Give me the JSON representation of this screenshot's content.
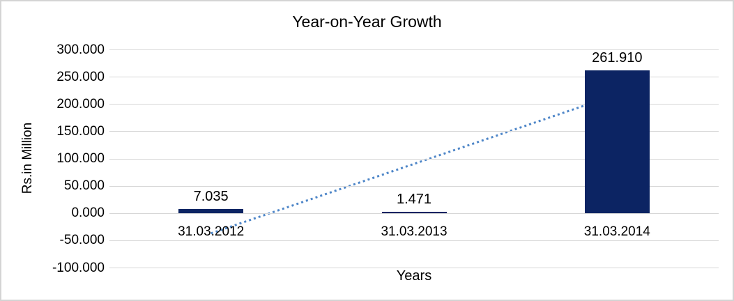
{
  "window": {
    "background": "#ffffff",
    "border_color": "#d4d4d4"
  },
  "chart_data": {
    "type": "bar",
    "title": "Year-on-Year Growth",
    "xlabel": "Years",
    "ylabel": "Rs.in Million",
    "categories": [
      "31.03.2012",
      "31.03.2013",
      "31.03.2014"
    ],
    "values": [
      7.035,
      1.471,
      261.91
    ],
    "data_labels": [
      "7.035",
      "1.471",
      "261.910"
    ],
    "y_ticks": [
      300,
      250,
      200,
      150,
      100,
      50,
      0,
      -50,
      -100
    ],
    "y_tick_labels": [
      "300.000",
      "250.000",
      "200.000",
      "150.000",
      "100.000",
      "50.000",
      "0.000",
      "-50.000",
      "-100.000"
    ],
    "ylim": [
      -100,
      300
    ],
    "grid": true,
    "legend": false,
    "colors": {
      "bar": "#0c2463",
      "trendline": "#4e86c8",
      "gridline": "#d6d6d6",
      "text": "#000000"
    },
    "trendline": {
      "type": "linear",
      "style": "dotted",
      "start_category": "31.03.2012",
      "start_value": -37.3,
      "end_category": "31.03.2014",
      "end_value": 217.6
    }
  }
}
